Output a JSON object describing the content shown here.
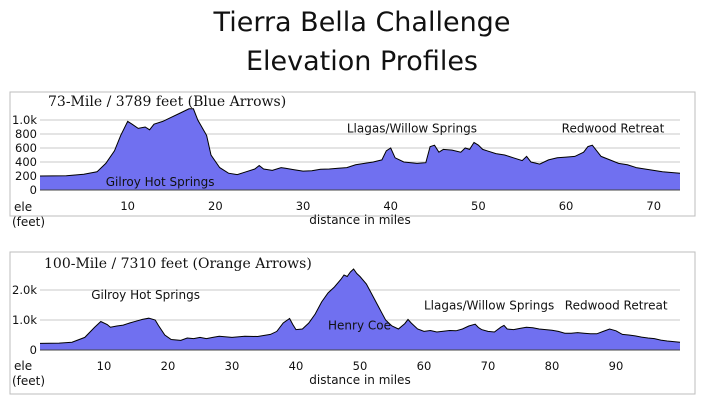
{
  "page_title_line1": "Tierra Bella Challenge",
  "page_title_line2": "Elevation Profiles",
  "chart_data": [
    {
      "type": "area",
      "title": "73-Mile / 3789 feet (Blue Arrows)",
      "xlabel": "distance in miles",
      "ylabel_line1": "ele",
      "ylabel_line2": "(feet)",
      "xlim": [
        0,
        73
      ],
      "ylim": [
        0,
        1100
      ],
      "xticks": [
        10,
        20,
        30,
        40,
        50,
        60,
        70
      ],
      "yticks": [
        0,
        200,
        400,
        600,
        800,
        1000
      ],
      "ytick_labels": [
        "0",
        "200",
        "400",
        "600",
        "800",
        "1.0k"
      ],
      "annotations": [
        {
          "text": "Gilroy Hot Springs",
          "x": 7.5,
          "y": 60
        },
        {
          "text": "Llagas/Willow Springs",
          "x": 35,
          "y": 820
        },
        {
          "text": "Redwood Retreat",
          "x": 59.5,
          "y": 820
        }
      ],
      "fill_color": "#7070f0",
      "line_color": "#000000",
      "points": [
        [
          0,
          200
        ],
        [
          3,
          205
        ],
        [
          5,
          225
        ],
        [
          6.5,
          260
        ],
        [
          7.5,
          380
        ],
        [
          8.5,
          560
        ],
        [
          9.2,
          780
        ],
        [
          10,
          980
        ],
        [
          10.5,
          940
        ],
        [
          11.2,
          880
        ],
        [
          12,
          900
        ],
        [
          12.5,
          860
        ],
        [
          13,
          940
        ],
        [
          14,
          980
        ],
        [
          15,
          1040
        ],
        [
          16,
          1100
        ],
        [
          17,
          1160
        ],
        [
          17.5,
          1160
        ],
        [
          18,
          1000
        ],
        [
          19,
          780
        ],
        [
          19.5,
          500
        ],
        [
          20.5,
          320
        ],
        [
          21.5,
          240
        ],
        [
          22.5,
          220
        ],
        [
          23.5,
          260
        ],
        [
          24.5,
          300
        ],
        [
          25,
          350
        ],
        [
          25.5,
          300
        ],
        [
          26.5,
          280
        ],
        [
          27.5,
          320
        ],
        [
          28,
          310
        ],
        [
          29,
          290
        ],
        [
          30,
          270
        ],
        [
          31,
          275
        ],
        [
          32,
          295
        ],
        [
          33,
          300
        ],
        [
          34,
          310
        ],
        [
          35,
          320
        ],
        [
          36,
          360
        ],
        [
          37,
          380
        ],
        [
          38,
          400
        ],
        [
          39,
          430
        ],
        [
          39.5,
          560
        ],
        [
          40,
          600
        ],
        [
          40.5,
          460
        ],
        [
          41.5,
          400
        ],
        [
          43,
          380
        ],
        [
          44,
          390
        ],
        [
          44.5,
          620
        ],
        [
          45,
          640
        ],
        [
          45.5,
          540
        ],
        [
          46,
          580
        ],
        [
          47,
          570
        ],
        [
          48,
          540
        ],
        [
          48.5,
          600
        ],
        [
          49,
          580
        ],
        [
          49.5,
          680
        ],
        [
          50,
          640
        ],
        [
          50.5,
          580
        ],
        [
          51,
          560
        ],
        [
          52,
          520
        ],
        [
          53,
          500
        ],
        [
          54,
          460
        ],
        [
          55,
          420
        ],
        [
          55.5,
          480
        ],
        [
          56,
          400
        ],
        [
          57,
          370
        ],
        [
          58,
          430
        ],
        [
          59,
          460
        ],
        [
          60,
          470
        ],
        [
          61,
          480
        ],
        [
          62,
          540
        ],
        [
          62.5,
          620
        ],
        [
          63,
          640
        ],
        [
          63.5,
          560
        ],
        [
          64,
          480
        ],
        [
          65,
          430
        ],
        [
          66,
          380
        ],
        [
          67,
          360
        ],
        [
          68,
          320
        ],
        [
          69,
          300
        ],
        [
          70,
          280
        ],
        [
          71,
          260
        ],
        [
          72,
          250
        ],
        [
          73,
          240
        ]
      ]
    },
    {
      "type": "area",
      "title": "100-Mile / 7310 feet (Orange Arrows)",
      "xlabel": "distance in miles",
      "ylabel_line1": "ele",
      "ylabel_line2": "(feet)",
      "xlim": [
        0,
        100
      ],
      "ylim": [
        0,
        2800
      ],
      "xticks": [
        10,
        20,
        30,
        40,
        50,
        60,
        70,
        80,
        90
      ],
      "yticks": [
        0,
        1000,
        2000
      ],
      "ytick_labels": [
        "0",
        "1.0k",
        "2.0k"
      ],
      "annotations": [
        {
          "text": "Gilroy Hot Springs",
          "x": 8,
          "y": 1700
        },
        {
          "text": "Henry Coe",
          "x": 45,
          "y": 680
        },
        {
          "text": "Llagas/Willow Springs",
          "x": 60,
          "y": 1350
        },
        {
          "text": "Redwood Retreat",
          "x": 82,
          "y": 1350
        }
      ],
      "fill_color": "#7070f0",
      "line_color": "#000000",
      "points": [
        [
          0,
          220
        ],
        [
          3,
          230
        ],
        [
          5,
          260
        ],
        [
          7,
          420
        ],
        [
          8.5,
          750
        ],
        [
          9.5,
          950
        ],
        [
          10.5,
          850
        ],
        [
          11,
          760
        ],
        [
          12,
          800
        ],
        [
          13,
          830
        ],
        [
          14,
          900
        ],
        [
          15,
          960
        ],
        [
          16,
          1020
        ],
        [
          17,
          1060
        ],
        [
          18,
          1000
        ],
        [
          18.5,
          820
        ],
        [
          19.5,
          500
        ],
        [
          20.5,
          350
        ],
        [
          22,
          320
        ],
        [
          23,
          400
        ],
        [
          24,
          380
        ],
        [
          25,
          420
        ],
        [
          26,
          380
        ],
        [
          27,
          420
        ],
        [
          28,
          460
        ],
        [
          30,
          420
        ],
        [
          32,
          460
        ],
        [
          34,
          450
        ],
        [
          36,
          520
        ],
        [
          37,
          620
        ],
        [
          38,
          900
        ],
        [
          39,
          1050
        ],
        [
          39.5,
          850
        ],
        [
          40,
          680
        ],
        [
          41,
          700
        ],
        [
          42,
          900
        ],
        [
          43,
          1200
        ],
        [
          44,
          1600
        ],
        [
          45,
          1900
        ],
        [
          46,
          2100
        ],
        [
          47,
          2350
        ],
        [
          47.5,
          2500
        ],
        [
          48,
          2450
        ],
        [
          48.5,
          2600
        ],
        [
          49,
          2700
        ],
        [
          49.5,
          2550
        ],
        [
          50,
          2450
        ],
        [
          51,
          2200
        ],
        [
          52,
          1800
        ],
        [
          53,
          1400
        ],
        [
          54,
          1000
        ],
        [
          55,
          800
        ],
        [
          56,
          700
        ],
        [
          57,
          880
        ],
        [
          57.5,
          1020
        ],
        [
          58,
          900
        ],
        [
          59,
          700
        ],
        [
          60,
          620
        ],
        [
          61,
          650
        ],
        [
          62,
          600
        ],
        [
          64,
          650
        ],
        [
          65,
          640
        ],
        [
          66,
          700
        ],
        [
          67,
          800
        ],
        [
          68,
          860
        ],
        [
          68.5,
          750
        ],
        [
          69,
          680
        ],
        [
          70,
          620
        ],
        [
          71,
          600
        ],
        [
          72,
          760
        ],
        [
          72.5,
          820
        ],
        [
          73,
          700
        ],
        [
          74,
          680
        ],
        [
          75,
          720
        ],
        [
          76,
          760
        ],
        [
          77,
          740
        ],
        [
          78,
          700
        ],
        [
          79,
          680
        ],
        [
          80,
          660
        ],
        [
          81,
          620
        ],
        [
          82,
          560
        ],
        [
          83,
          560
        ],
        [
          84,
          580
        ],
        [
          85,
          560
        ],
        [
          86,
          540
        ],
        [
          87,
          540
        ],
        [
          88,
          620
        ],
        [
          89,
          700
        ],
        [
          90,
          640
        ],
        [
          91,
          520
        ],
        [
          92,
          500
        ],
        [
          93,
          470
        ],
        [
          94,
          430
        ],
        [
          95,
          400
        ],
        [
          96,
          380
        ],
        [
          97,
          330
        ],
        [
          98,
          300
        ],
        [
          99,
          280
        ],
        [
          100,
          260
        ]
      ]
    }
  ]
}
